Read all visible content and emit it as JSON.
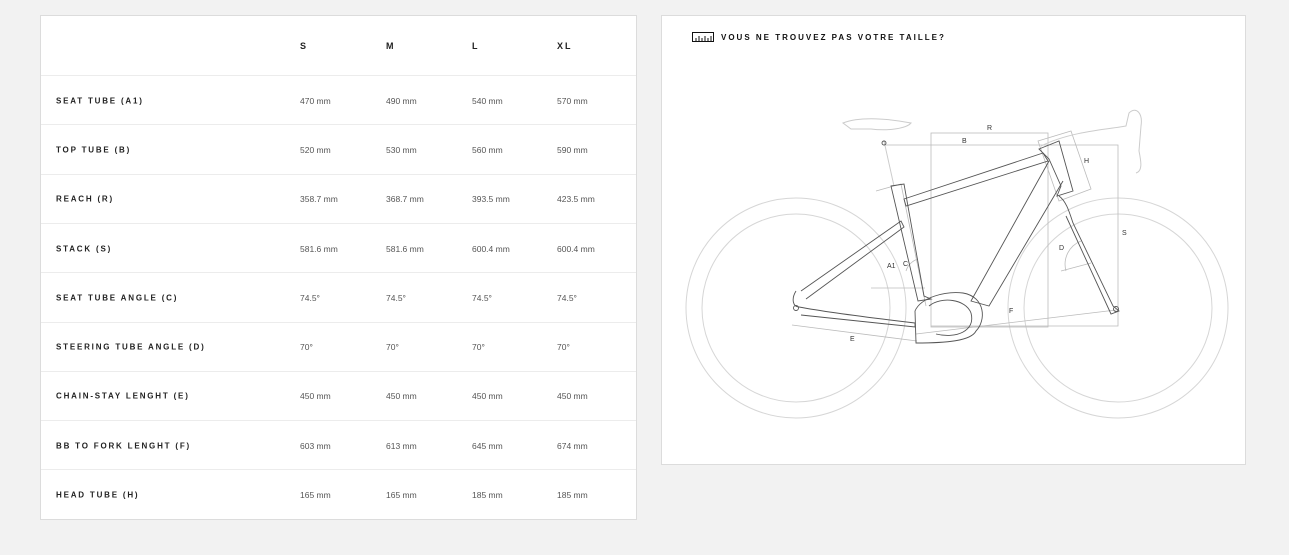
{
  "table": {
    "sizes": [
      "S",
      "M",
      "L",
      "XL"
    ],
    "rows": [
      {
        "label": "SEAT TUBE (A1)",
        "values": [
          "470 mm",
          "490 mm",
          "540 mm",
          "570 mm"
        ]
      },
      {
        "label": "TOP TUBE (B)",
        "values": [
          "520 mm",
          "530 mm",
          "560 mm",
          "590 mm"
        ]
      },
      {
        "label": "REACH (R)",
        "values": [
          "358.7 mm",
          "368.7 mm",
          "393.5 mm",
          "423.5 mm"
        ]
      },
      {
        "label": "STACK (S)",
        "values": [
          "581.6 mm",
          "581.6 mm",
          "600.4 mm",
          "600.4 mm"
        ]
      },
      {
        "label": "SEAT TUBE ANGLE (C)",
        "values": [
          "74.5°",
          "74.5°",
          "74.5°",
          "74.5°"
        ]
      },
      {
        "label": "STEERING TUBE ANGLE (D)",
        "values": [
          "70°",
          "70°",
          "70°",
          "70°"
        ]
      },
      {
        "label": "CHAIN-STAY LENGHT (E)",
        "values": [
          "450 mm",
          "450 mm",
          "450 mm",
          "450 mm"
        ]
      },
      {
        "label": "BB TO FORK LENGHT (F)",
        "values": [
          "603 mm",
          "613 mm",
          "645 mm",
          "674 mm"
        ]
      },
      {
        "label": "HEAD TUBE (H)",
        "values": [
          "165 mm",
          "165 mm",
          "185 mm",
          "185 mm"
        ]
      }
    ]
  },
  "geometry": {
    "title": "VOUS NE TROUVEZ PAS VOTRE TAILLE?",
    "icon": "ruler-icon",
    "labels": {
      "R": "R",
      "B": "B",
      "H": "H",
      "S": "S",
      "D": "D",
      "A1": "A1",
      "C": "C",
      "F": "F",
      "E": "E"
    }
  }
}
